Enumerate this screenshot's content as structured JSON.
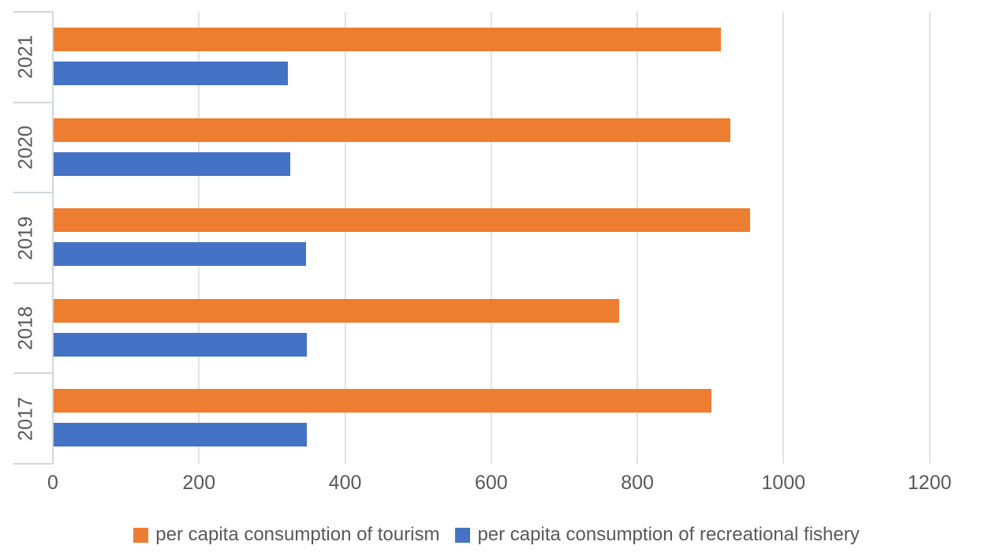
{
  "chart_data": {
    "type": "bar",
    "orientation": "horizontal",
    "title": "",
    "categories": [
      "2021",
      "2020",
      "2019",
      "2018",
      "2017"
    ],
    "series": [
      {
        "name": "per capita consumption of tourism",
        "color": "#ED7D31",
        "values": [
          913,
          926,
          953,
          774,
          900
        ]
      },
      {
        "name": "per capita consumption of recreational fishery",
        "color": "#4472C4",
        "values": [
          321,
          324,
          345,
          347,
          347
        ]
      }
    ],
    "x_axis": {
      "min": 0,
      "max": 1200,
      "step": 200,
      "ticks": [
        "0",
        "200",
        "400",
        "600",
        "800",
        "1000",
        "1200"
      ]
    },
    "grid": true,
    "legend_position": "bottom",
    "text_color": "#595959",
    "gridline_color": "#E3E3E3",
    "axis_color": "#D3D6D9",
    "background": "#FFFFFF"
  }
}
